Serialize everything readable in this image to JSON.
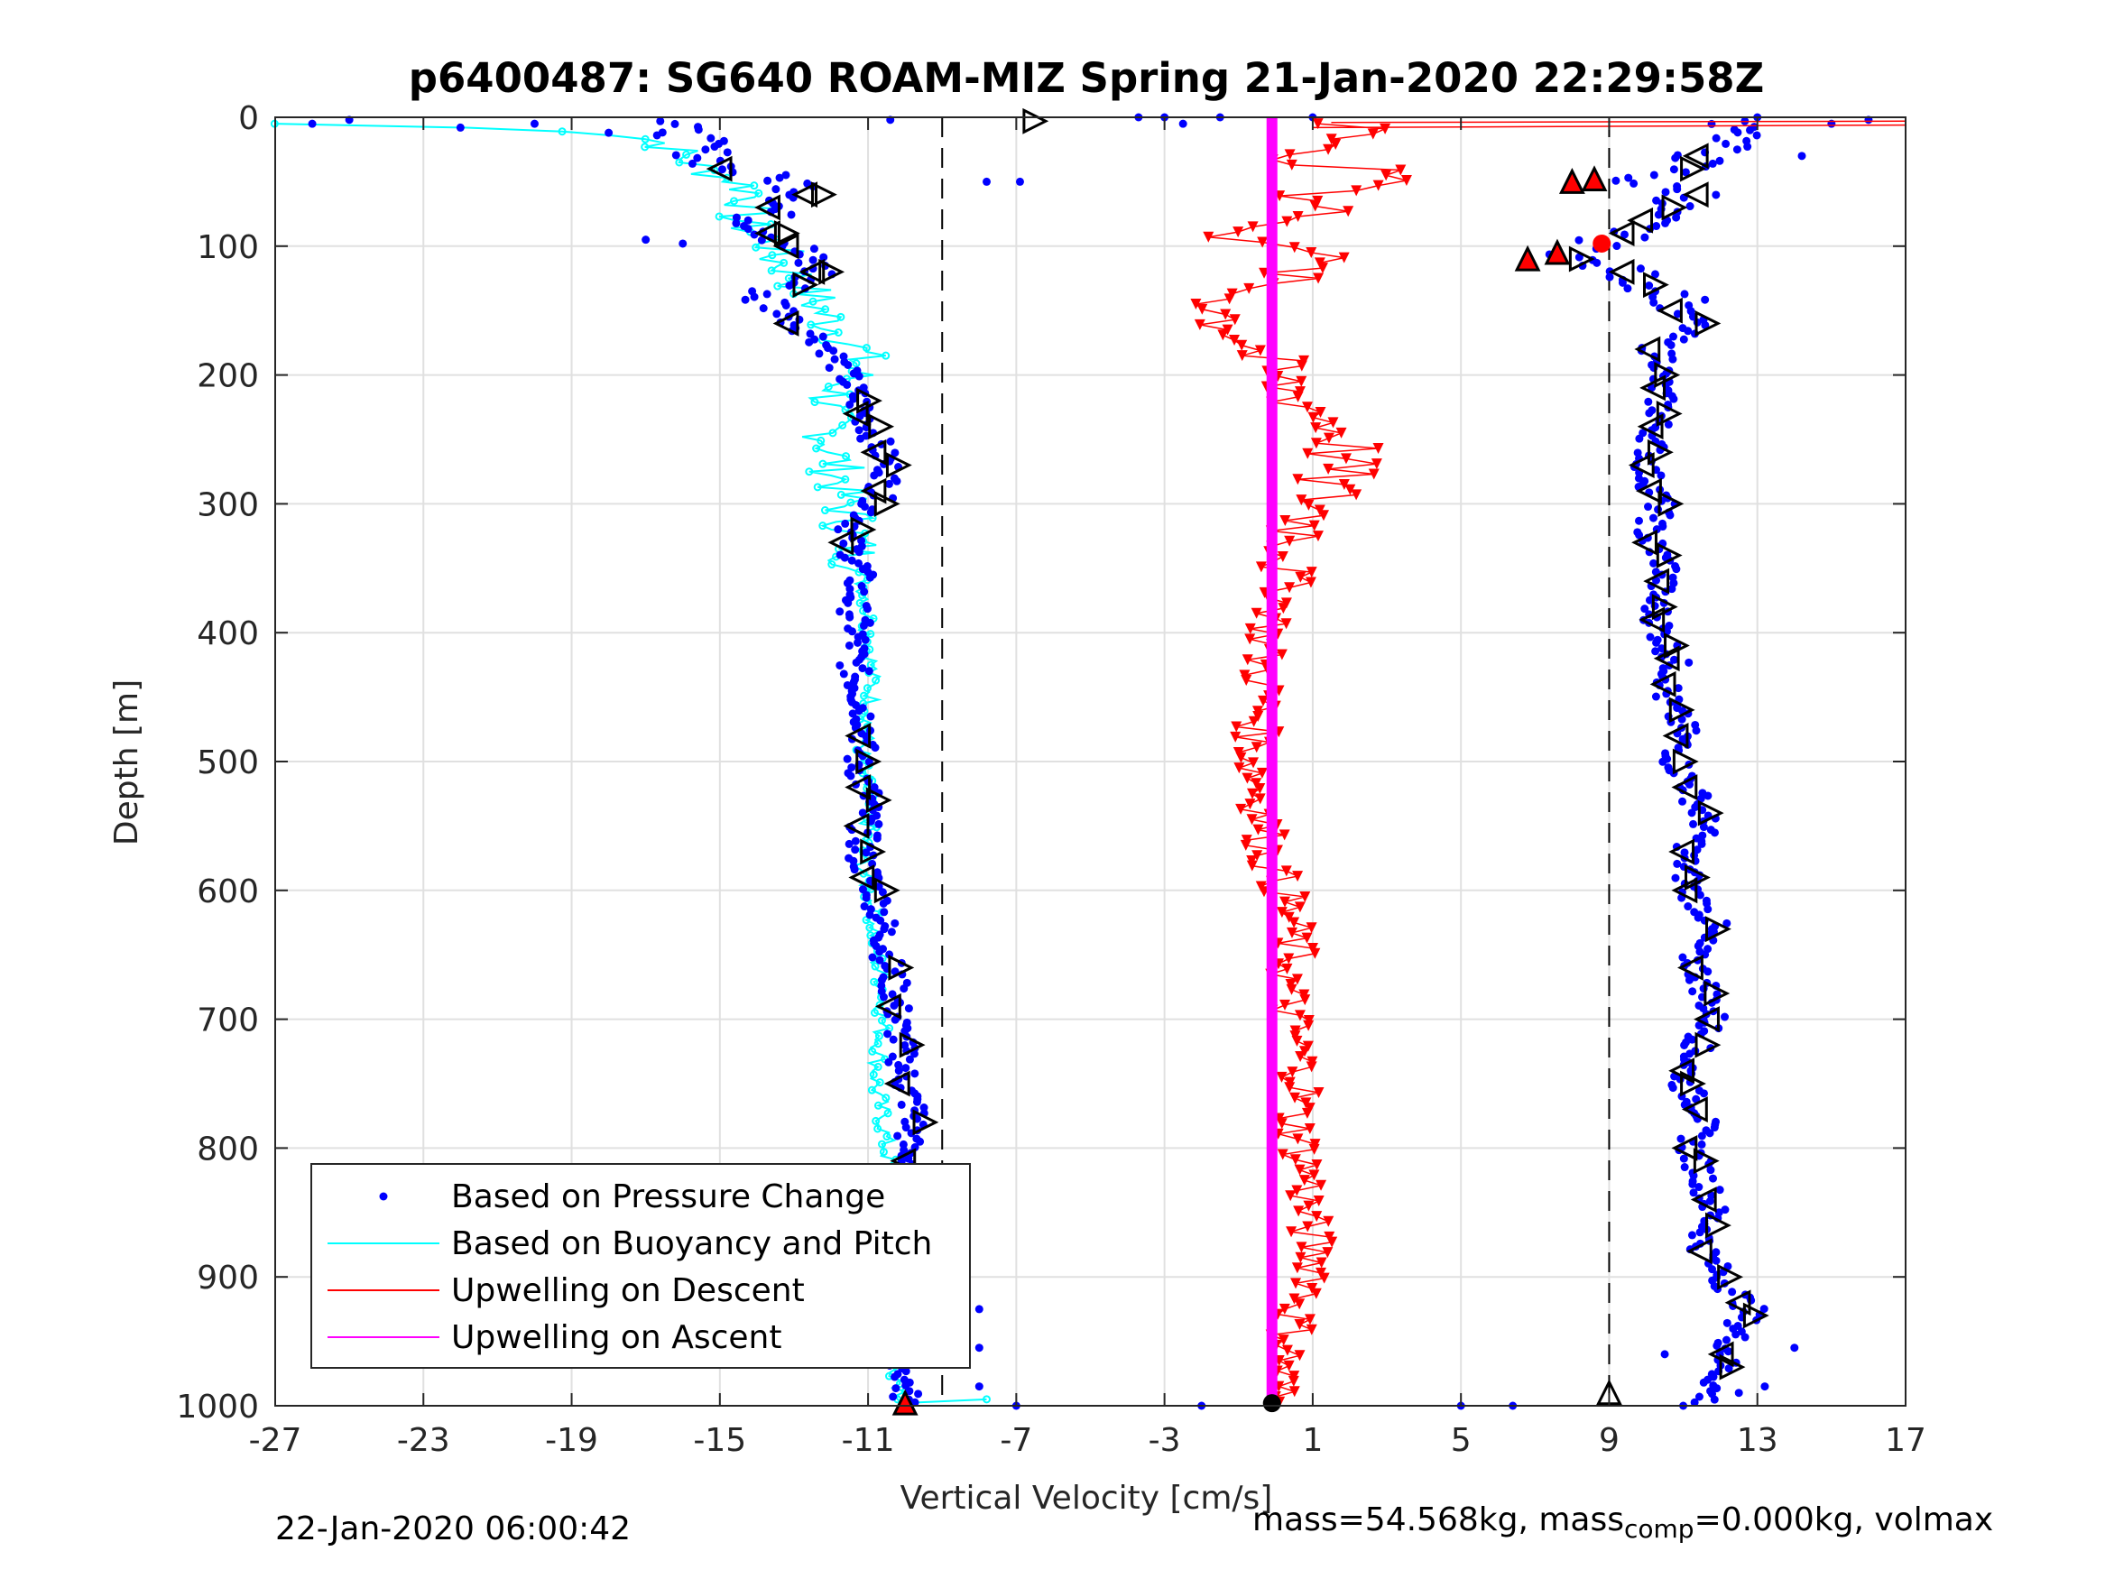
{
  "chart_data": {
    "type": "scatter",
    "title": "p6400487: SG640 ROAM-MIZ Spring 21-Jan-2020 22:29:58Z",
    "xlabel": "Vertical Velocity [cm/s]",
    "ylabel": "Depth [m]",
    "xlim": [
      -27,
      17
    ],
    "ylim": [
      0,
      1000
    ],
    "y_reversed": true,
    "xticks": [
      -27,
      -23,
      -19,
      -15,
      -11,
      -7,
      -3,
      1,
      5,
      9,
      13,
      17
    ],
    "yticks": [
      0,
      100,
      200,
      300,
      400,
      500,
      600,
      700,
      800,
      900,
      1000
    ],
    "grid": true,
    "legend_position": "bottom-left",
    "reference_lines_x": [
      -9,
      9
    ],
    "series": [
      {
        "name": "Based on Pressure Change",
        "style": "points",
        "color": "#0000ff",
        "descent": {
          "depths": [
            5,
            12,
            20,
            30,
            40,
            50,
            60,
            70,
            80,
            90,
            100,
            110,
            120,
            130,
            140,
            150,
            160,
            170,
            180,
            190,
            200,
            225,
            250,
            275,
            300,
            325,
            350,
            375,
            400,
            425,
            450,
            475,
            500,
            525,
            550,
            575,
            600,
            625,
            650,
            675,
            700,
            725,
            750,
            775,
            800,
            825,
            850,
            875,
            900,
            925,
            950,
            975,
            995
          ],
          "values": [
            -16.5,
            -16.0,
            -15.6,
            -15.4,
            -14.8,
            -13.0,
            -12.5,
            -13.5,
            -14.0,
            -13.5,
            -13.0,
            -12.8,
            -12.3,
            -13.0,
            -14.0,
            -13.2,
            -13.0,
            -12.4,
            -12.0,
            -11.8,
            -11.6,
            -11.2,
            -10.8,
            -10.4,
            -10.8,
            -11.6,
            -11.2,
            -11.4,
            -11.3,
            -11.4,
            -11.2,
            -11.0,
            -11.3,
            -11.0,
            -11.1,
            -11.2,
            -10.8,
            -10.6,
            -10.5,
            -10.3,
            -10.2,
            -10.1,
            -10.0,
            -9.7,
            -10.0,
            -9.6,
            -9.5,
            -9.8,
            -9.6,
            -9.8,
            -10.1,
            -10.0,
            -10.0
          ]
        },
        "ascent": {
          "depths": [
            5,
            10,
            20,
            30,
            40,
            50,
            60,
            70,
            80,
            90,
            100,
            110,
            120,
            130,
            140,
            150,
            160,
            170,
            180,
            190,
            200,
            225,
            250,
            275,
            300,
            325,
            350,
            375,
            400,
            425,
            450,
            475,
            500,
            525,
            550,
            575,
            600,
            625,
            650,
            675,
            700,
            725,
            750,
            775,
            800,
            825,
            850,
            875,
            900,
            925,
            950,
            975,
            995
          ],
          "values": [
            12.5,
            13.0,
            12.2,
            11.5,
            11.0,
            9.5,
            11.5,
            10.5,
            10.0,
            9.5,
            8.5,
            8.0,
            9.5,
            10.0,
            11.0,
            10.8,
            11.4,
            10.8,
            10.2,
            10.6,
            10.3,
            10.4,
            10.2,
            10.0,
            10.4,
            10.0,
            10.6,
            10.2,
            10.4,
            10.8,
            10.5,
            11.0,
            10.8,
            11.3,
            11.6,
            11.0,
            11.2,
            11.8,
            11.2,
            11.6,
            11.8,
            11.3,
            11.0,
            11.6,
            11.2,
            11.6,
            11.8,
            11.5,
            12.0,
            12.8,
            12.3,
            12.0,
            11.6
          ]
        }
      },
      {
        "name": "Based on Buoyancy and Pitch",
        "style": "line",
        "color": "#00ffff",
        "depths": [
          5,
          8,
          10,
          15,
          20,
          30,
          40,
          50,
          60,
          70,
          80,
          90,
          100,
          110,
          120,
          130,
          140,
          150,
          160,
          170,
          180,
          190,
          200,
          225,
          250,
          275,
          300,
          325,
          350,
          375,
          400,
          425,
          450,
          475,
          500,
          525,
          550,
          575,
          600,
          625,
          650,
          675,
          700,
          725,
          750,
          775,
          800,
          825,
          850,
          875,
          900,
          925,
          950,
          975,
          995
        ],
        "values": [
          -27.0,
          -22.0,
          -19.0,
          -17.2,
          -16.5,
          -16.0,
          -15.5,
          -14.5,
          -14.0,
          -14.2,
          -14.5,
          -14.0,
          -13.5,
          -13.5,
          -13.0,
          -12.8,
          -12.5,
          -12.3,
          -12.0,
          -11.6,
          -11.3,
          -11.2,
          -11.4,
          -12.2,
          -12.0,
          -11.8,
          -11.6,
          -11.4,
          -11.3,
          -11.0,
          -11.0,
          -10.9,
          -10.9,
          -11.0,
          -11.2,
          -11.0,
          -11.0,
          -11.2,
          -11.0,
          -10.8,
          -10.8,
          -10.6,
          -10.6,
          -10.7,
          -10.8,
          -10.6,
          -10.5,
          -10.4,
          -10.3,
          -10.4,
          -10.2,
          -10.3,
          -10.3,
          -10.2,
          -10.0
        ]
      },
      {
        "name": "Upwelling on Descent",
        "style": "line-triangles",
        "color": "#ff0000",
        "depths": [
          5,
          10,
          20,
          30,
          40,
          50,
          60,
          70,
          80,
          90,
          100,
          110,
          120,
          130,
          140,
          150,
          160,
          170,
          180,
          190,
          200,
          225,
          250,
          275,
          300,
          325,
          350,
          375,
          400,
          425,
          450,
          475,
          500,
          525,
          550,
          575,
          600,
          625,
          650,
          675,
          700,
          725,
          750,
          775,
          800,
          825,
          850,
          875,
          900,
          925,
          950,
          975,
          995
        ],
        "values": [
          1.5,
          3.5,
          1.0,
          -0.5,
          2.0,
          4.0,
          1.0,
          2.0,
          0.5,
          -2.0,
          1.5,
          0.8,
          0.5,
          -0.5,
          -1.0,
          -1.5,
          -1.2,
          -0.8,
          -0.6,
          -0.4,
          -0.2,
          1.0,
          2.0,
          1.5,
          1.2,
          0.8,
          0.5,
          0.2,
          -0.2,
          -0.4,
          -0.3,
          -0.5,
          -0.6,
          -0.4,
          -0.3,
          -0.2,
          0.2,
          0.4,
          0.5,
          0.3,
          0.4,
          0.6,
          0.8,
          0.5,
          0.7,
          0.9,
          0.8,
          1.0,
          1.2,
          0.6,
          0.4,
          0.2,
          0.0
        ]
      },
      {
        "name": "Upwelling on Ascent",
        "style": "line",
        "color": "#ff00ff",
        "depths": [
          0,
          1000
        ],
        "values": [
          -0.1,
          -0.1
        ]
      }
    ],
    "markers": {
      "descent_left": [
        40,
        60,
        70,
        90,
        100,
        120,
        160,
        230,
        260,
        290,
        330,
        480,
        520,
        550,
        590,
        690,
        750,
        810,
        930
      ],
      "descent_right": [
        60,
        90,
        120,
        130,
        220,
        240,
        270,
        300,
        320,
        500,
        530,
        570,
        600,
        660,
        720,
        780,
        840,
        890,
        960
      ],
      "ascent_left": [
        30,
        60,
        80,
        90,
        120,
        150,
        180,
        210,
        240,
        270,
        290,
        330,
        360,
        390,
        420,
        440,
        480,
        520,
        570,
        600,
        660,
        700,
        740,
        770,
        800,
        840,
        880,
        920,
        960
      ],
      "ascent_right": [
        40,
        70,
        110,
        130,
        160,
        200,
        230,
        260,
        300,
        340,
        380,
        410,
        460,
        500,
        540,
        590,
        630,
        680,
        720,
        750,
        810,
        860,
        900,
        930,
        970
      ],
      "surface_right_x": -6.5,
      "red_up_triangles": [
        [
          -10.0,
          998
        ],
        [
          8.0,
          50
        ],
        [
          8.6,
          48
        ],
        [
          7.6,
          105
        ],
        [
          6.8,
          110
        ]
      ],
      "open_up_triangle": [
        9.0,
        990
      ],
      "red_dot": [
        8.8,
        98
      ],
      "magenta_bottom_marker": [
        -0.1,
        998
      ]
    },
    "legend": [
      "Based on Pressure Change",
      "Based on Buoyancy and Pitch",
      "Upwelling on Descent",
      "Upwelling on Ascent"
    ]
  },
  "footer": {
    "left": "22-Jan-2020 06:00:42",
    "right_prefix": "mass=54.568kg, mass",
    "right_sub": "comp",
    "right_suffix": "=0.000kg, volmax"
  }
}
